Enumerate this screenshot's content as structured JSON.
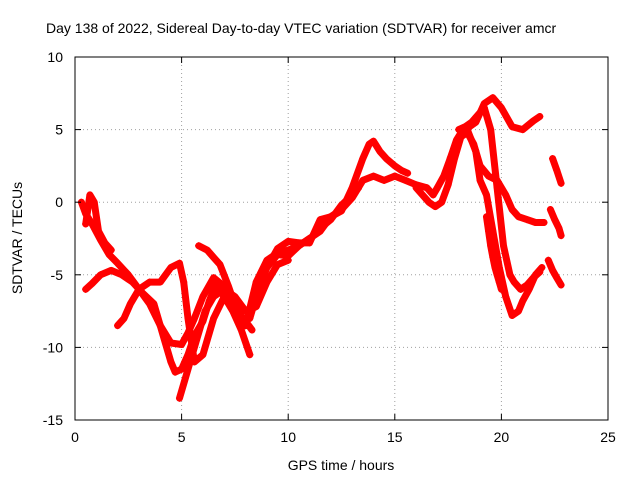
{
  "chart_data": {
    "type": "scatter",
    "title": "Day 138 of 2022, Sidereal Day-to-day VTEC variation (SDTVAR) for receiver amcr",
    "xlabel": "GPS time / hours",
    "ylabel": "SDTVAR / TECUs",
    "xlim": [
      0,
      25
    ],
    "ylim": [
      -15,
      10
    ],
    "xticks": [
      "0",
      "5",
      "10",
      "15",
      "20",
      "25"
    ],
    "yticks": [
      "-15",
      "-10",
      "-5",
      "0",
      "5",
      "10"
    ],
    "grid": true,
    "marker": "plus",
    "color": "#ff0000",
    "series": [
      {
        "x": [
          0.3,
          0.5,
          0.8,
          1.2,
          1.6,
          2.0,
          2.5,
          3.0,
          3.5,
          4.0,
          4.5,
          5.0,
          5.3,
          5.6,
          6.0,
          6.5,
          7.0,
          7.5,
          8.0,
          8.5,
          9.0,
          9.5,
          10.0,
          10.5,
          11.0
        ],
        "y": [
          0.0,
          -0.8,
          -1.5,
          -2.6,
          -3.6,
          -4.2,
          -5.0,
          -6.0,
          -7.0,
          -8.5,
          -9.7,
          -9.8,
          -9.0,
          -8.0,
          -6.5,
          -5.2,
          -5.8,
          -7.0,
          -8.5,
          -5.5,
          -4.0,
          -3.5,
          -3.3,
          -3.0,
          -2.5
        ]
      },
      {
        "x": [
          0.5,
          0.8,
          1.2,
          1.7,
          2.2,
          2.7,
          3.2,
          3.7,
          4.2,
          4.5,
          4.7,
          5.0,
          5.3,
          5.6,
          6.0,
          6.3,
          6.6,
          7.0,
          7.4,
          7.8,
          8.2
        ],
        "y": [
          -6.0,
          -5.6,
          -5.0,
          -4.7,
          -5.0,
          -5.5,
          -6.3,
          -7.0,
          -9.5,
          -11.0,
          -11.7,
          -11.5,
          -10.5,
          -9.2,
          -8.2,
          -6.8,
          -5.7,
          -6.5,
          -7.5,
          -8.8,
          -10.5
        ]
      },
      {
        "x": [
          2.0,
          2.3,
          2.6,
          3.0,
          3.5,
          4.0,
          4.5,
          4.9,
          5.1,
          5.3,
          5.6,
          6.0,
          6.5,
          7.0,
          7.5,
          8.0,
          8.3
        ],
        "y": [
          -8.5,
          -8.0,
          -7.0,
          -6.0,
          -5.5,
          -5.5,
          -4.5,
          -4.2,
          -5.5,
          -8.0,
          -11.0,
          -10.5,
          -8.0,
          -6.5,
          -7.3,
          -8.2,
          -8.8
        ]
      },
      {
        "x": [
          4.9,
          5.3,
          5.7,
          6.1,
          6.5,
          7.0,
          7.5,
          8.0,
          8.5,
          9.0,
          9.5,
          10.0
        ],
        "y": [
          -13.5,
          -11.5,
          -9.5,
          -7.5,
          -6.5,
          -6.0,
          -6.5,
          -7.5,
          -7.2,
          -5.5,
          -4.3,
          -4.0
        ]
      },
      {
        "x": [
          5.8,
          6.2,
          6.5,
          6.8,
          7.2,
          7.6,
          8.0
        ],
        "y": [
          -3.0,
          -3.3,
          -3.8,
          -4.3,
          -5.8,
          -7.5,
          -8.5
        ]
      },
      {
        "x": [
          0.5,
          0.7,
          0.9,
          1.1,
          1.4,
          1.7
        ],
        "y": [
          -1.5,
          0.5,
          0.0,
          -2.0,
          -2.8,
          -3.3
        ]
      },
      {
        "x": [
          8.2,
          8.6,
          9.0,
          9.5,
          10.0,
          10.5,
          11.0,
          11.5,
          12.0,
          12.5,
          13.0,
          13.5,
          14.0,
          14.5,
          15.0
        ],
        "y": [
          -8.0,
          -6.0,
          -4.5,
          -3.6,
          -3.7,
          -3.0,
          -2.5,
          -2.0,
          -1.0,
          -0.5,
          0.3,
          1.5,
          1.8,
          1.5,
          1.8
        ]
      },
      {
        "x": [
          9.0,
          9.5,
          10.0,
          10.5,
          11.0,
          11.5,
          12.0,
          12.5,
          13.0,
          13.5,
          13.8,
          14.0,
          14.3,
          14.6,
          15.0,
          15.3,
          15.6
        ],
        "y": [
          -4.5,
          -3.2,
          -2.7,
          -2.8,
          -2.8,
          -1.2,
          -1.0,
          -0.6,
          1.0,
          3.0,
          4.0,
          4.2,
          3.5,
          3.0,
          2.5,
          2.2,
          2.0
        ]
      },
      {
        "x": [
          11.5,
          12.0,
          12.5,
          13.0,
          13.3
        ],
        "y": [
          -1.8,
          -1.2,
          -0.2,
          0.5,
          1.0
        ]
      },
      {
        "x": [
          15.0,
          15.5,
          16.0,
          16.5,
          16.8,
          17.0,
          17.3,
          17.6,
          17.9,
          18.2,
          18.5,
          18.8,
          19.2,
          19.6,
          20.0,
          20.5,
          21.0,
          21.5,
          21.8
        ],
        "y": [
          1.8,
          1.5,
          1.2,
          1.0,
          0.5,
          1.0,
          1.8,
          3.0,
          4.3,
          5.0,
          5.2,
          5.5,
          6.8,
          7.2,
          6.5,
          5.2,
          5.0,
          5.6,
          5.9
        ]
      },
      {
        "x": [
          16.0,
          16.3,
          16.6,
          16.9,
          17.2,
          17.5,
          17.8,
          18.1,
          18.4,
          18.7,
          19.0,
          19.4,
          19.8,
          20.2,
          20.5,
          20.8,
          21.2,
          21.6,
          22.0
        ],
        "y": [
          1.0,
          0.5,
          0.0,
          -0.3,
          0.0,
          1.2,
          3.0,
          4.5,
          4.8,
          4.0,
          2.5,
          1.8,
          1.5,
          0.5,
          -0.5,
          -1.0,
          -1.2,
          -1.4,
          -1.4
        ]
      },
      {
        "x": [
          17.6,
          18.0,
          18.4,
          18.8,
          19.0,
          19.3,
          19.6,
          19.9,
          20.2,
          20.5,
          20.8,
          21.0,
          21.3,
          21.6,
          21.9
        ],
        "y": [
          3.0,
          4.5,
          5.0,
          3.5,
          1.5,
          0.5,
          -2.0,
          -4.5,
          -6.5,
          -7.8,
          -7.5,
          -6.8,
          -6.0,
          -5.0,
          -4.5
        ]
      },
      {
        "x": [
          18.0,
          18.3,
          18.6,
          18.9,
          19.2,
          19.5,
          19.8,
          20.1,
          20.4,
          20.6,
          20.9,
          21.2,
          21.5,
          21.8
        ],
        "y": [
          5.0,
          5.2,
          5.5,
          6.0,
          6.5,
          5.0,
          1.0,
          -3.0,
          -5.0,
          -5.5,
          -6.0,
          -5.7,
          -5.2,
          -4.8
        ]
      },
      {
        "x": [
          22.4,
          22.6,
          22.8
        ],
        "y": [
          3.0,
          2.2,
          1.3
        ]
      },
      {
        "x": [
          22.3,
          22.5,
          22.7,
          22.8
        ],
        "y": [
          -0.5,
          -1.2,
          -1.8,
          -2.3
        ]
      },
      {
        "x": [
          22.2,
          22.4,
          22.6,
          22.8
        ],
        "y": [
          -4.0,
          -4.7,
          -5.2,
          -5.7
        ]
      },
      {
        "x": [
          19.3,
          19.4,
          19.5,
          19.6,
          19.7,
          19.8,
          19.9,
          20.0
        ],
        "y": [
          -1.0,
          -2.0,
          -3.0,
          -3.8,
          -4.5,
          -5.0,
          -5.5,
          -6.0
        ]
      }
    ]
  }
}
